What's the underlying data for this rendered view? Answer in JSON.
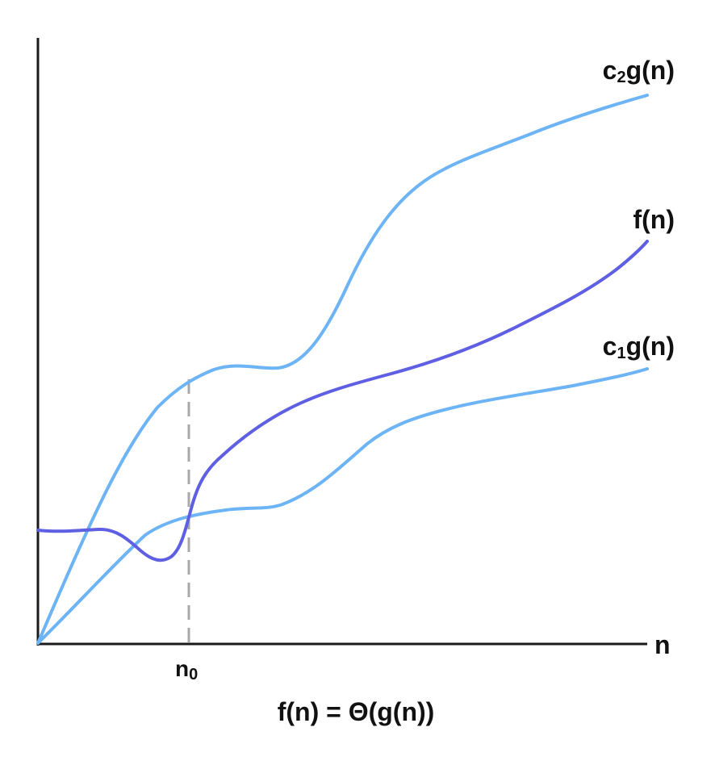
{
  "axes": {
    "x_label": "n",
    "axis_color": "#1a1a1a"
  },
  "threshold": {
    "label_main": "n",
    "label_sub": "0",
    "line_color": "#a8a8a8",
    "line_style": "dashed"
  },
  "curves": [
    {
      "id": "c2g",
      "label_prefix": "c",
      "label_sub": "2",
      "label_suffix": "g(n)",
      "color": "#6cb4f5"
    },
    {
      "id": "fn",
      "label": "f(n)",
      "color": "#5e5fe3"
    },
    {
      "id": "c1g",
      "label_prefix": "c",
      "label_sub": "1",
      "label_suffix": "g(n)",
      "color": "#6cb4f5"
    }
  ],
  "caption": "f(n) = Θ(g(n))"
}
